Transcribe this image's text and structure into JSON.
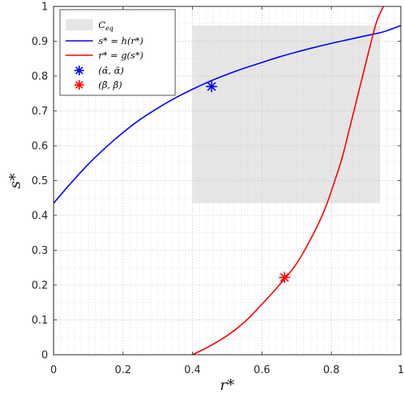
{
  "chart_data": {
    "type": "line",
    "xlabel": "r*",
    "ylabel": "s*",
    "xlim": [
      0,
      1
    ],
    "ylim": [
      0,
      1
    ],
    "xticks": [
      "0",
      "0.2",
      "0.4",
      "0.6",
      "0.8",
      "1"
    ],
    "yticks": [
      "0",
      "0.1",
      "0.2",
      "0.3",
      "0.4",
      "0.5",
      "0.6",
      "0.7",
      "0.8",
      "0.9",
      "1"
    ],
    "grid": true,
    "minor_grid": true,
    "legend_position": "top-left",
    "region": {
      "name": "C_eq",
      "legend": "C",
      "legend_sub": "eq",
      "x": [
        0.4,
        0.94
      ],
      "y": [
        0.435,
        0.945
      ],
      "color": "#e6e6e6"
    },
    "series": [
      {
        "legend": "s* = h(r*)",
        "color": "#0000ff",
        "x": [
          0.0,
          0.05,
          0.1,
          0.15,
          0.2,
          0.25,
          0.3,
          0.35,
          0.4,
          0.45,
          0.5,
          0.55,
          0.6,
          0.65,
          0.7,
          0.75,
          0.8,
          0.85,
          0.9,
          0.95,
          1.0
        ],
        "y": [
          0.435,
          0.493,
          0.547,
          0.595,
          0.638,
          0.676,
          0.708,
          0.737,
          0.762,
          0.785,
          0.805,
          0.823,
          0.839,
          0.855,
          0.869,
          0.882,
          0.894,
          0.905,
          0.916,
          0.927,
          0.945
        ]
      },
      {
        "legend": "r* = g(s*)",
        "color": "#ff0000",
        "x": [
          0.4,
          0.45,
          0.5,
          0.55,
          0.6,
          0.65,
          0.7,
          0.75,
          0.78,
          0.8,
          0.83,
          0.85,
          0.87,
          0.89,
          0.91,
          0.93,
          0.95
        ],
        "y": [
          0.0,
          0.025,
          0.055,
          0.094,
          0.145,
          0.2,
          0.262,
          0.35,
          0.415,
          0.47,
          0.562,
          0.64,
          0.72,
          0.8,
          0.88,
          0.955,
          1.0
        ]
      }
    ],
    "points": [
      {
        "legend": "(α̂, ᾱ)",
        "color": "#0000ff",
        "x": 0.455,
        "y": 0.77
      },
      {
        "legend": "(β̃, β̂)",
        "color": "#ff0000",
        "x": 0.665,
        "y": 0.222
      }
    ]
  }
}
